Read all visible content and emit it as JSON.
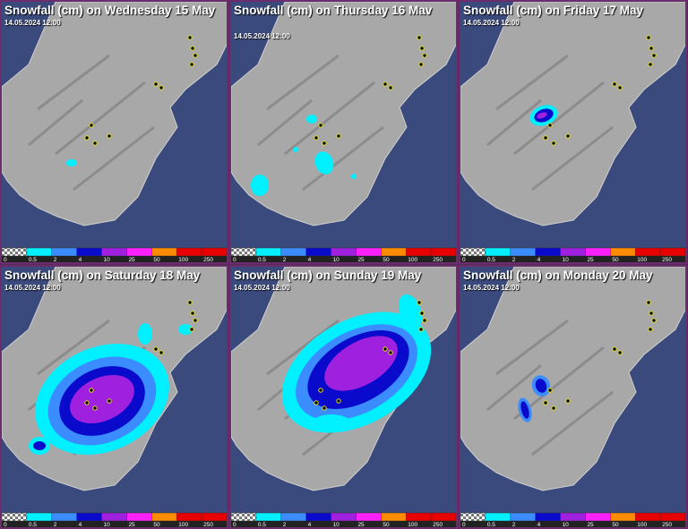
{
  "panels": [
    {
      "title": "Snowfall (cm) on Wednesday 15 May",
      "time": "14.05.2024 12:00"
    },
    {
      "title": "Snowfall (cm) on Thursday 16 Mav",
      "time": "14.05.2024 12:00"
    },
    {
      "title": "Snowfall (cm) on Friday 17 May",
      "time": "14.05.2024 12:00"
    },
    {
      "title": "Snowfall (cm) on Saturday 18 May",
      "time": "14.05.2024 12:00"
    },
    {
      "title": "Snowfall (cm) on Sunday 19 May",
      "time": "14.05.2024 12:00"
    },
    {
      "title": "Snowfall (cm) on Monday 20 May",
      "time": "14.05.2024 12:00"
    }
  ],
  "legend": {
    "labels": [
      0,
      0.5,
      2,
      4,
      10,
      25,
      50,
      100,
      250
    ],
    "colors": [
      "checker",
      "#00f0ff",
      "#3a8cff",
      "#0a0acc",
      "#a020e0",
      "#ff20ff",
      "#ff8c00",
      "#e80000",
      "#e80000"
    ]
  }
}
